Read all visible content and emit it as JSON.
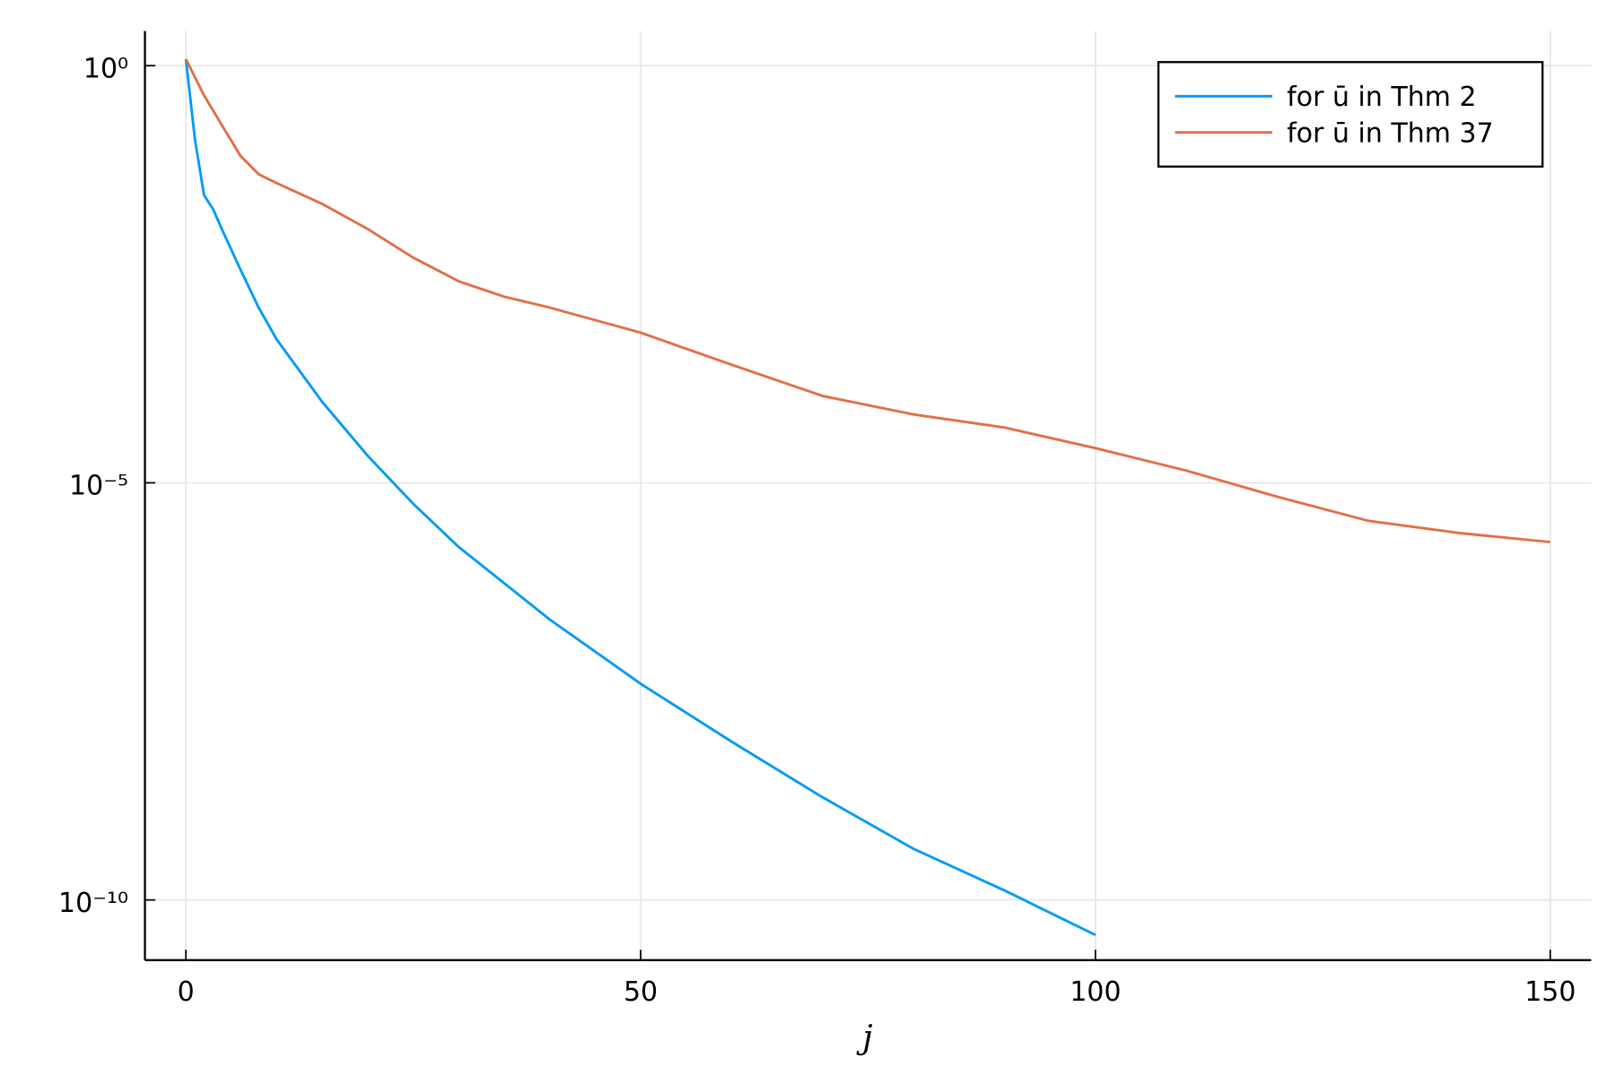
{
  "chart_data": {
    "type": "line",
    "x_label": "j",
    "log_y": true,
    "grid": true,
    "legend": "top-right",
    "xlim": [
      -4.5,
      154.5
    ],
    "xticks": [
      0,
      50,
      100,
      150
    ],
    "ylim": [
      1.9e-11,
      2.6
    ],
    "yticks": [
      {
        "value": 1,
        "label": "10⁰"
      },
      {
        "value": 1e-05,
        "label": "10⁻⁵"
      },
      {
        "value": 1e-10,
        "label": "10⁻¹⁰"
      }
    ],
    "series": [
      {
        "name": "for ū in Thm 2",
        "color": "#009af9",
        "x": [
          0,
          1,
          2,
          3,
          4,
          6,
          8,
          10,
          15,
          20,
          25,
          30,
          40,
          50,
          60,
          70,
          80,
          90,
          100
        ],
        "values": [
          1.2,
          0.13,
          0.028,
          0.019,
          0.0107,
          0.0036,
          0.00126,
          0.00052,
          9.3e-05,
          2.1e-05,
          5.6e-06,
          1.7e-06,
          2.3e-07,
          3.9e-08,
          7.9e-09,
          1.7e-09,
          4.1e-10,
          1.3e-10,
          3.8e-11
        ]
      },
      {
        "name": "for ū in Thm 37",
        "color": "#e26f46",
        "x": [
          0,
          2,
          4,
          6,
          8,
          10,
          15,
          20,
          25,
          30,
          35,
          40,
          50,
          60,
          70,
          80,
          90,
          100,
          110,
          120,
          130,
          140,
          150
        ],
        "values": [
          1.2,
          0.44,
          0.19,
          0.083,
          0.05,
          0.039,
          0.022,
          0.011,
          0.005,
          0.0026,
          0.0017,
          0.00126,
          0.00063,
          0.00026,
          0.00011,
          6.6e-05,
          4.6e-05,
          2.6e-05,
          1.4e-05,
          6.8e-06,
          3.5e-06,
          2.5e-06,
          1.95e-06
        ]
      }
    ]
  }
}
